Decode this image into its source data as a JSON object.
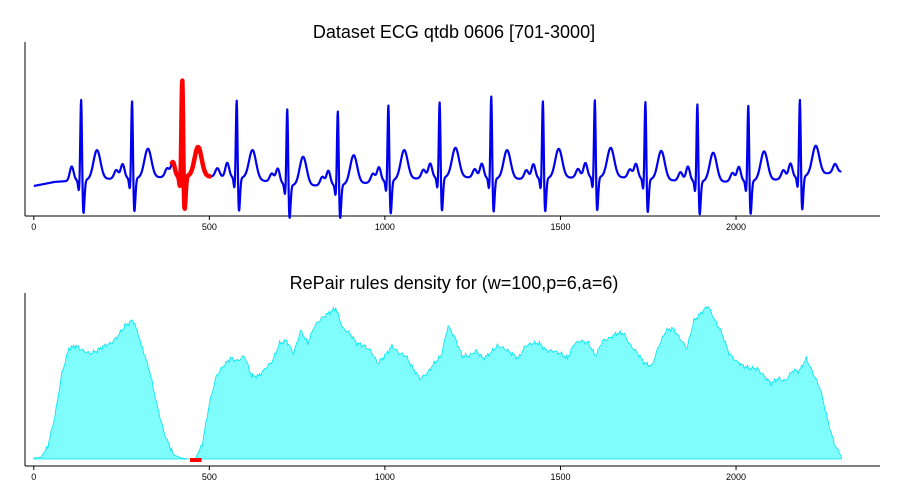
{
  "chart_data": [
    {
      "type": "line",
      "title": "Dataset ECG qtdb 0606 [701-3000]",
      "xlabel": "",
      "ylabel": "",
      "xlim": [
        -25,
        2410
      ],
      "xticks": [
        0,
        500,
        1000,
        1500,
        2000
      ],
      "ylim": [
        -1.5,
        3.6
      ],
      "colors": {
        "signal": "#0000ee",
        "anomaly": "#ff0000"
      },
      "ecg": {
        "length": 2300,
        "r_peaks": [
          135,
          280,
          423,
          578,
          722,
          866,
          1010,
          1156,
          1303,
          1450,
          1598,
          1742,
          1890,
          2035,
          2182
        ],
        "r_amplitudes": [
          2.55,
          2.45,
          3.0,
          2.45,
          2.4,
          2.35,
          2.4,
          2.4,
          2.6,
          2.45,
          2.45,
          2.45,
          2.45,
          2.4,
          2.45
        ],
        "baseline": [
          [
            0,
            -0.62
          ],
          [
            60,
            -0.5
          ],
          [
            180,
            -0.42
          ],
          [
            320,
            -0.38
          ],
          [
            450,
            -0.32
          ],
          [
            600,
            -0.38
          ],
          [
            750,
            -0.62
          ],
          [
            900,
            -0.58
          ],
          [
            1050,
            -0.42
          ],
          [
            1200,
            -0.35
          ],
          [
            1350,
            -0.42
          ],
          [
            1500,
            -0.38
          ],
          [
            1650,
            -0.35
          ],
          [
            1800,
            -0.45
          ],
          [
            1950,
            -0.5
          ],
          [
            2100,
            -0.45
          ],
          [
            2300,
            -0.2
          ]
        ]
      },
      "anomaly_range": [
        392,
        505
      ]
    },
    {
      "type": "area",
      "title": "RePair rules density for (w=100,p=6,a=6)",
      "xlabel": "",
      "ylabel": "",
      "xlim": [
        -25,
        2410
      ],
      "xticks": [
        0,
        500,
        1000,
        1500,
        2000
      ],
      "ylim": [
        0,
        330
      ],
      "colors": {
        "fill": "#7ffcfc",
        "stroke": "#00e5ee",
        "anomaly": "#ff0000"
      },
      "density": {
        "x": [
          0,
          20,
          40,
          60,
          80,
          100,
          120,
          140,
          160,
          180,
          200,
          220,
          240,
          260,
          280,
          295,
          310,
          330,
          350,
          370,
          390,
          400,
          420,
          440,
          460,
          480,
          500,
          520,
          540,
          560,
          580,
          600,
          620,
          640,
          660,
          680,
          700,
          720,
          740,
          760,
          780,
          800,
          820,
          840,
          860,
          880,
          900,
          920,
          940,
          960,
          980,
          1000,
          1020,
          1040,
          1060,
          1080,
          1100,
          1120,
          1140,
          1160,
          1180,
          1200,
          1220,
          1240,
          1260,
          1280,
          1300,
          1320,
          1340,
          1360,
          1380,
          1400,
          1420,
          1440,
          1460,
          1480,
          1500,
          1520,
          1540,
          1560,
          1580,
          1600,
          1620,
          1640,
          1660,
          1680,
          1700,
          1720,
          1740,
          1760,
          1780,
          1800,
          1820,
          1840,
          1860,
          1880,
          1900,
          1920,
          1940,
          1960,
          1980,
          2000,
          2020,
          2040,
          2060,
          2080,
          2100,
          2120,
          2140,
          2160,
          2180,
          2200,
          2220,
          2240,
          2260,
          2280,
          2300
        ],
        "y": [
          2,
          3,
          25,
          85,
          170,
          220,
          225,
          215,
          210,
          215,
          225,
          230,
          245,
          265,
          275,
          255,
          220,
          175,
          110,
          55,
          20,
          8,
          2,
          0,
          0,
          30,
          110,
          165,
          185,
          200,
          195,
          205,
          165,
          165,
          180,
          195,
          230,
          235,
          210,
          255,
          230,
          265,
          280,
          290,
          300,
          260,
          250,
          230,
          225,
          215,
          190,
          205,
          225,
          210,
          205,
          180,
          160,
          170,
          190,
          205,
          265,
          240,
          205,
          205,
          215,
          200,
          210,
          225,
          220,
          210,
          200,
          225,
          230,
          230,
          215,
          215,
          210,
          200,
          230,
          235,
          230,
          205,
          235,
          240,
          250,
          250,
          225,
          210,
          190,
          185,
          225,
          255,
          260,
          240,
          220,
          275,
          290,
          305,
          275,
          250,
          210,
          195,
          185,
          180,
          180,
          165,
          150,
          160,
          155,
          175,
          175,
          200,
          170,
          140,
          80,
          30,
          5
        ]
      },
      "anomaly_range": [
        445,
        478
      ]
    }
  ]
}
